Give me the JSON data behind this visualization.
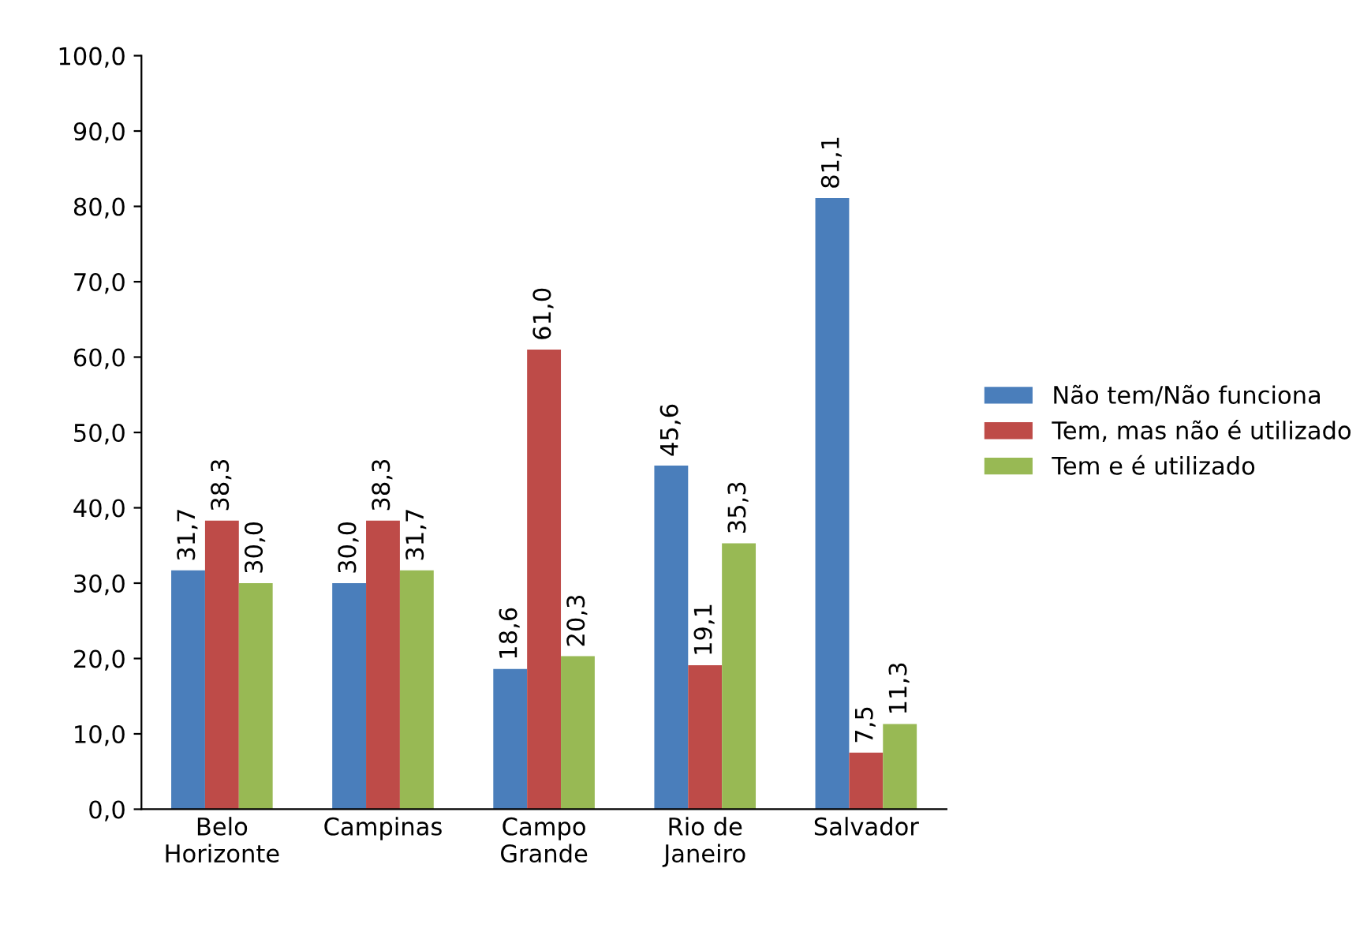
{
  "chart_data": {
    "type": "bar",
    "categories": [
      "Belo\nHorizonte",
      "Campinas",
      "Campo\nGrande",
      "Rio de\nJaneiro",
      "Salvador"
    ],
    "series": [
      {
        "name": "Não tem/Não funciona",
        "color": "#4a7ebb",
        "values": [
          31.7,
          30.0,
          18.6,
          45.6,
          81.1
        ],
        "value_labels": [
          "31,7",
          "30,0",
          "18,6",
          "45,6",
          "81,1"
        ]
      },
      {
        "name": "Tem, mas não é utilizado",
        "color": "#be4b48",
        "values": [
          38.3,
          38.3,
          61.0,
          19.1,
          7.5
        ],
        "value_labels": [
          "38,3",
          "38,3",
          "61,0",
          "19,1",
          "7,5"
        ]
      },
      {
        "name": "Tem e é utilizado",
        "color": "#98b954",
        "values": [
          30.0,
          31.7,
          20.3,
          35.3,
          11.3
        ],
        "value_labels": [
          "30,0",
          "31,7",
          "20,3",
          "35,3",
          "11,3"
        ]
      }
    ],
    "ylim": [
      0,
      100
    ],
    "yticks": [
      {
        "value": 0,
        "label": "0,0"
      },
      {
        "value": 10,
        "label": "10,0"
      },
      {
        "value": 20,
        "label": "20,0"
      },
      {
        "value": 30,
        "label": "30,0"
      },
      {
        "value": 40,
        "label": "40,0"
      },
      {
        "value": 50,
        "label": "50,0"
      },
      {
        "value": 60,
        "label": "60,0"
      },
      {
        "value": 70,
        "label": "70,0"
      },
      {
        "value": 80,
        "label": "80,0"
      },
      {
        "value": 90,
        "label": "90,0"
      },
      {
        "value": 100,
        "label": "100,0"
      }
    ],
    "grid": false,
    "legend": "right"
  }
}
